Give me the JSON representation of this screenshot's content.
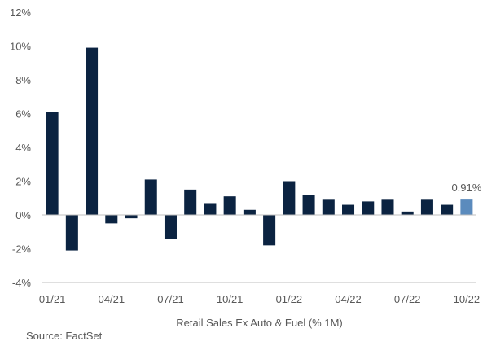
{
  "chart_data": {
    "type": "bar",
    "categories": [
      "01/21",
      "02/21",
      "03/21",
      "04/21",
      "05/21",
      "06/21",
      "07/21",
      "08/21",
      "09/21",
      "10/21",
      "11/21",
      "12/21",
      "01/22",
      "02/22",
      "03/22",
      "04/22",
      "05/22",
      "06/22",
      "07/22",
      "08/22",
      "09/22",
      "10/22"
    ],
    "values": [
      6.1,
      -2.1,
      9.9,
      -0.5,
      -0.2,
      2.1,
      -1.4,
      1.5,
      0.7,
      1.1,
      0.3,
      -1.8,
      2.0,
      1.2,
      0.9,
      0.6,
      0.8,
      0.9,
      0.2,
      0.9,
      0.6,
      0.91
    ],
    "xtick_labels": [
      "01/21",
      "04/21",
      "07/21",
      "10/21",
      "01/22",
      "04/22",
      "07/22",
      "10/22"
    ],
    "ytick_labels": [
      "-4%",
      "-2%",
      "0%",
      "2%",
      "4%",
      "6%",
      "8%",
      "10%",
      "12%"
    ],
    "ylim": [
      -4,
      12
    ],
    "xlabel": "Retail Sales Ex Auto & Fuel (% 1M)",
    "ylabel": "",
    "annotation": "0.91%",
    "grid": false,
    "colors": {
      "bar": "#0b2341",
      "highlight": "#5b8bbd",
      "axis": "#bfbfbf"
    }
  },
  "source": "Source: FactSet"
}
